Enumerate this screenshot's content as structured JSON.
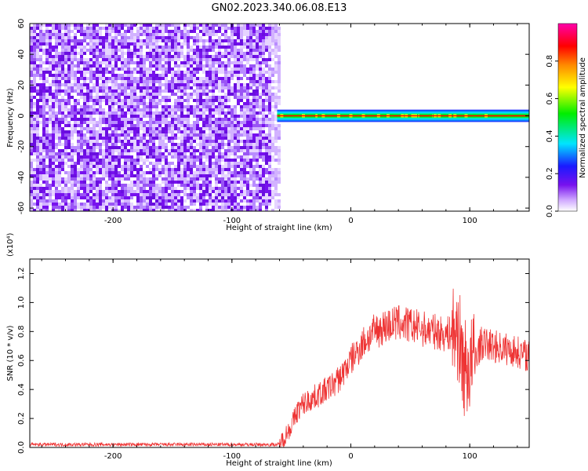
{
  "title": "GN02.2023.340.06.08.E13",
  "colors": {
    "trace": "#ee3333",
    "noise": "#7711ee",
    "background": "#ffffff"
  },
  "chart_data": [
    {
      "type": "heatmap",
      "xlabel": "Height of straight line (km)",
      "ylabel": "Frequency (Hz)",
      "xlim": [
        -270,
        150
      ],
      "ylim": [
        -62,
        60
      ],
      "x_ticks": [
        "-200",
        "-100",
        "0",
        "100"
      ],
      "y_ticks": [
        "-60",
        "-40",
        "-20",
        "0",
        "20",
        "40",
        "60"
      ],
      "grid": false,
      "regions": [
        {
          "x_range": [
            -270,
            -60
          ],
          "frequency_range": [
            -62,
            60
          ],
          "amplitude": "low (~0.05–0.15), broadband noise"
        },
        {
          "x_range": [
            -62,
            150
          ],
          "frequency_center": 0,
          "frequency_halfwidth": 4,
          "amplitude": "~0.9–1.0 (peak at 0 Hz)"
        }
      ],
      "colorbar": {
        "label": "Normalized spectral amplitude",
        "ticks": [
          "0.0",
          "0.2",
          "0.4",
          "0.6",
          "0.8"
        ],
        "range": [
          0,
          1
        ],
        "colormap": "hsv-like (purple → blue → cyan → green → yellow → red → magenta)"
      }
    },
    {
      "type": "line",
      "xlabel": "Height of straight line (km)",
      "ylabel": "SNR (10 * v/v)",
      "y_scale_label": "(x10⁴)",
      "xlim": [
        -270,
        150
      ],
      "ylim": [
        0,
        1.3
      ],
      "x_ticks": [
        "-200",
        "-100",
        "0",
        "100"
      ],
      "y_ticks": [
        "0.0",
        "0.2",
        "0.4",
        "0.6",
        "0.8",
        "1.0",
        "1.2"
      ],
      "grid": false,
      "series": [
        {
          "x": [
            -270,
            -240,
            -200,
            -160,
            -120,
            -80,
            -60,
            -50,
            -45,
            -40,
            -30,
            -20,
            -10,
            0,
            10,
            20,
            30,
            40,
            50,
            60,
            70,
            80,
            90,
            95,
            100,
            110,
            120,
            130,
            140,
            150
          ],
          "y": [
            0.02,
            0.02,
            0.02,
            0.02,
            0.02,
            0.02,
            0.02,
            0.15,
            0.25,
            0.3,
            0.35,
            0.4,
            0.47,
            0.6,
            0.72,
            0.8,
            0.84,
            0.86,
            0.84,
            0.82,
            0.8,
            0.78,
            0.8,
            0.55,
            0.55,
            0.72,
            0.7,
            0.68,
            0.66,
            0.63
          ]
        }
      ]
    }
  ]
}
